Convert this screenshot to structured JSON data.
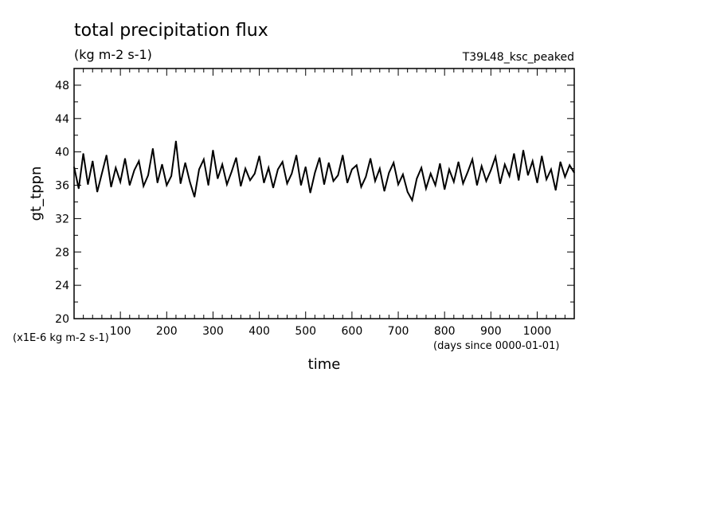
{
  "chart_data": {
    "type": "line",
    "title": "total precipitation flux",
    "subtitle": "(kg m-2 s-1)",
    "run_label": "T39L48_ksc_peaked",
    "xlabel": "time",
    "ylabel": "gt_tppn",
    "x_units_note": "(days since 0000-01-01)",
    "y_units_note": "(x1E-6 kg m-2 s-1)",
    "xlim": [
      0,
      1080
    ],
    "ylim": [
      20,
      50
    ],
    "x_ticks": [
      "100",
      "200",
      "300",
      "400",
      "500",
      "600",
      "700",
      "800",
      "900",
      "1000"
    ],
    "y_ticks": [
      "20",
      "24",
      "28",
      "32",
      "36",
      "40",
      "44",
      "48"
    ],
    "grid": false,
    "series": [
      {
        "color": "#000000",
        "x": [
          0,
          10,
          20,
          30,
          40,
          50,
          60,
          70,
          80,
          90,
          100,
          110,
          120,
          130,
          140,
          150,
          160,
          170,
          180,
          190,
          200,
          210,
          220,
          230,
          240,
          250,
          260,
          270,
          280,
          290,
          300,
          310,
          320,
          330,
          340,
          350,
          360,
          370,
          380,
          390,
          400,
          410,
          420,
          430,
          440,
          450,
          460,
          470,
          480,
          490,
          500,
          510,
          520,
          530,
          540,
          550,
          560,
          570,
          580,
          590,
          600,
          610,
          620,
          630,
          640,
          650,
          660,
          670,
          680,
          690,
          700,
          710,
          720,
          730,
          740,
          750,
          760,
          770,
          780,
          790,
          800,
          810,
          820,
          830,
          840,
          850,
          860,
          870,
          880,
          890,
          900,
          910,
          920,
          930,
          940,
          950,
          960,
          970,
          980,
          990,
          1000,
          1010,
          1020,
          1030,
          1040,
          1050,
          1060,
          1070,
          1080
        ],
        "y": [
          38.2,
          35.6,
          39.8,
          36.1,
          38.9,
          35.2,
          37.4,
          39.6,
          35.8,
          38.1,
          36.4,
          39.2,
          36.0,
          37.8,
          38.9,
          35.9,
          37.2,
          40.4,
          36.3,
          38.5,
          36.0,
          37.1,
          41.3,
          36.2,
          38.7,
          36.4,
          34.6,
          37.9,
          39.1,
          36.0,
          40.2,
          36.8,
          38.5,
          36.1,
          37.6,
          39.3,
          35.9,
          38.0,
          36.6,
          37.4,
          39.5,
          36.3,
          38.1,
          35.7,
          37.9,
          38.8,
          36.2,
          37.4,
          39.6,
          36.0,
          38.2,
          35.1,
          37.5,
          39.3,
          36.1,
          38.7,
          36.5,
          37.2,
          39.6,
          36.3,
          37.9,
          38.4,
          35.8,
          37.0,
          39.2,
          36.5,
          38.0,
          35.3,
          37.5,
          38.7,
          36.1,
          37.3,
          35.2,
          34.2,
          36.8,
          38.1,
          35.6,
          37.4,
          36.0,
          38.6,
          35.5,
          37.9,
          36.4,
          38.8,
          36.2,
          37.6,
          39.1,
          36.0,
          38.3,
          36.5,
          37.8,
          39.4,
          36.2,
          38.5,
          37.1,
          39.8,
          36.6,
          40.2,
          37.2,
          38.9,
          36.3,
          39.5,
          36.7,
          37.9,
          35.4,
          38.8,
          37.0,
          38.4,
          37.5
        ]
      }
    ]
  }
}
